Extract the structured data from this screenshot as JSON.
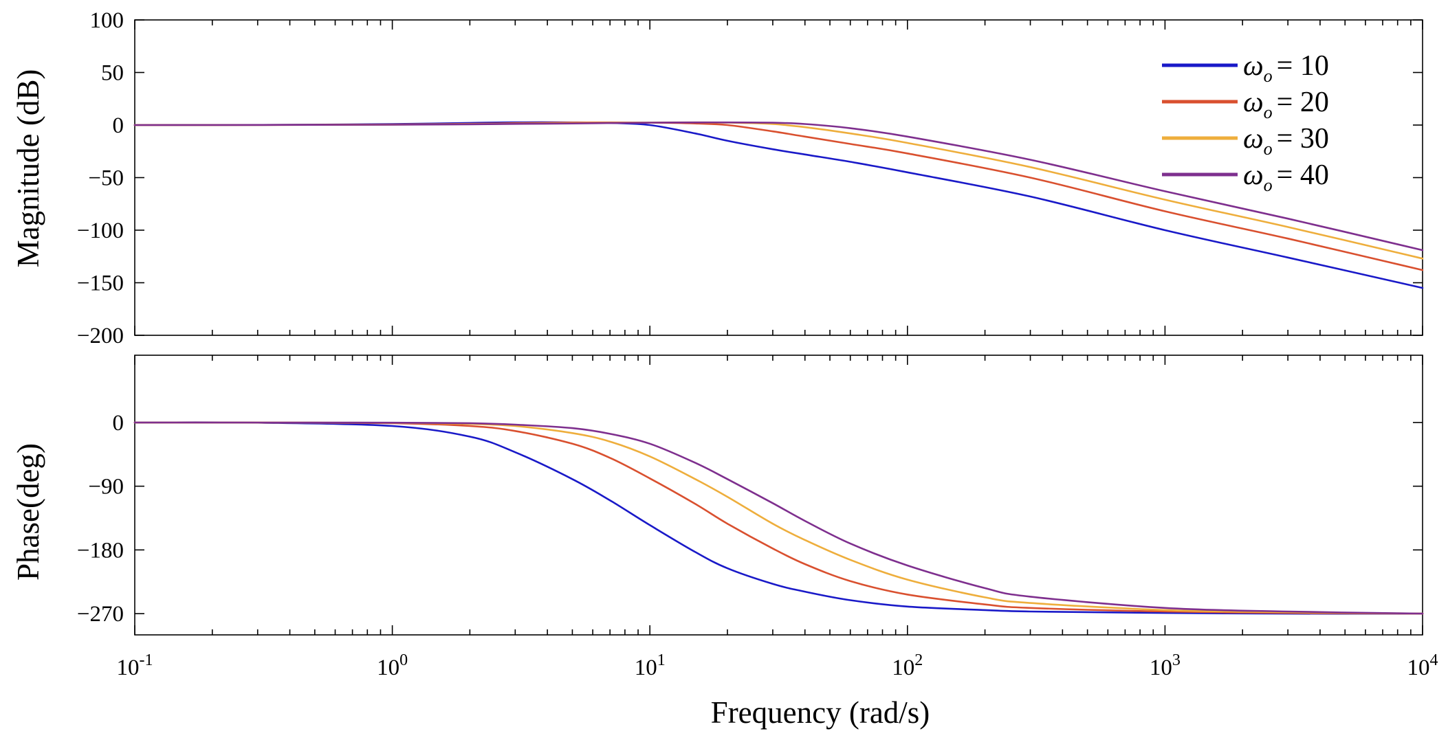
{
  "chart_data": [
    {
      "type": "line",
      "panel": "magnitude",
      "ylabel": "Magnitude  (dB)",
      "xscale": "log",
      "xlim": [
        0.1,
        10000
      ],
      "ylim": [
        -200,
        100
      ],
      "yticks": [
        100,
        50,
        0,
        -50,
        -100,
        -150,
        -200
      ],
      "ytick_labels": [
        "100",
        "50",
        "0",
        "−50",
        "−100",
        "−150",
        "−200"
      ],
      "x": [
        0.1,
        0.3,
        1,
        2,
        3,
        5,
        7,
        10,
        15,
        20,
        30,
        40,
        60,
        100,
        300,
        1000,
        3000,
        10000
      ],
      "series": [
        {
          "name": "ωo = 10",
          "color": "#1919c8",
          "values": [
            0,
            0.1,
            0.9,
            2,
            2.6,
            2.5,
            2,
            0,
            -8,
            -15,
            -23,
            -28,
            -35,
            -45,
            -68,
            -100,
            -126,
            -155
          ]
        },
        {
          "name": "ωo = 20",
          "color": "#d9502f",
          "values": [
            0,
            0.1,
            0.5,
            1.2,
            1.8,
            2.4,
            2.5,
            2.3,
            1.5,
            0,
            -6,
            -11,
            -18,
            -27,
            -50,
            -82,
            -108,
            -138
          ]
        },
        {
          "name": "ωo = 30",
          "color": "#eeae3c",
          "values": [
            0,
            0.1,
            0.4,
            0.9,
            1.3,
            1.9,
            2.2,
            2.4,
            2.5,
            2.3,
            1,
            -2,
            -8,
            -17,
            -40,
            -71,
            -97,
            -127
          ]
        },
        {
          "name": "ωo = 40",
          "color": "#7e2f8e",
          "values": [
            0,
            0.1,
            0.3,
            0.7,
            1.1,
            1.5,
            1.9,
            2.3,
            2.5,
            2.5,
            2.2,
            1,
            -3,
            -11,
            -33,
            -63,
            -89,
            -119
          ]
        }
      ]
    },
    {
      "type": "line",
      "panel": "phase",
      "ylabel": "Phase(deg)",
      "xlabel": "Frequency (rad/s)",
      "xscale": "log",
      "xlim": [
        0.1,
        10000
      ],
      "ylim": [
        -300,
        95
      ],
      "yticks": [
        0,
        -90,
        -180,
        -270
      ],
      "ytick_labels": [
        "0",
        "−90",
        "−180",
        "−270"
      ],
      "x": [
        0.1,
        0.3,
        1,
        2,
        3,
        5,
        7,
        10,
        15,
        20,
        30,
        40,
        60,
        100,
        200,
        300,
        1000,
        3000,
        10000
      ],
      "series": [
        {
          "name": "ωo = 10",
          "color": "#1919c8",
          "values": [
            0,
            -0.3,
            -5,
            -20,
            -42,
            -80,
            -110,
            -145,
            -183,
            -206,
            -228,
            -239,
            -251,
            -260,
            -265,
            -267,
            -269,
            -270,
            -270
          ]
        },
        {
          "name": "ωo = 20",
          "color": "#d9502f",
          "values": [
            0,
            -0.1,
            -1,
            -5,
            -12,
            -30,
            -50,
            -79,
            -115,
            -143,
            -178,
            -200,
            -224,
            -243,
            -257,
            -262,
            -267,
            -269,
            -270
          ]
        },
        {
          "name": "ωo = 30",
          "color": "#eeae3c",
          "values": [
            0,
            -0.1,
            -0.5,
            -2,
            -5,
            -15,
            -27,
            -48,
            -80,
            -105,
            -143,
            -166,
            -194,
            -222,
            -247,
            -255,
            -265,
            -268,
            -270
          ]
        },
        {
          "name": "ωo = 40",
          "color": "#7e2f8e",
          "values": [
            0,
            -0.1,
            -0.3,
            -1,
            -3,
            -8,
            -16,
            -30,
            -57,
            -80,
            -114,
            -139,
            -171,
            -202,
            -234,
            -246,
            -262,
            -267,
            -270
          ]
        }
      ]
    }
  ],
  "x_tick_labels": [
    {
      "base": "10",
      "exp": "-1"
    },
    {
      "base": "10",
      "exp": "0"
    },
    {
      "base": "10",
      "exp": "1"
    },
    {
      "base": "10",
      "exp": "2"
    },
    {
      "base": "10",
      "exp": "3"
    },
    {
      "base": "10",
      "exp": "4"
    }
  ],
  "legend": [
    {
      "symbol": "ω",
      "sub": "o",
      "text": "= 10",
      "color": "#1919c8"
    },
    {
      "symbol": "ω",
      "sub": "o",
      "text": "= 20",
      "color": "#d9502f"
    },
    {
      "symbol": "ω",
      "sub": "o",
      "text": "= 30",
      "color": "#eeae3c"
    },
    {
      "symbol": "ω",
      "sub": "o",
      "text": "= 40",
      "color": "#7e2f8e"
    }
  ]
}
